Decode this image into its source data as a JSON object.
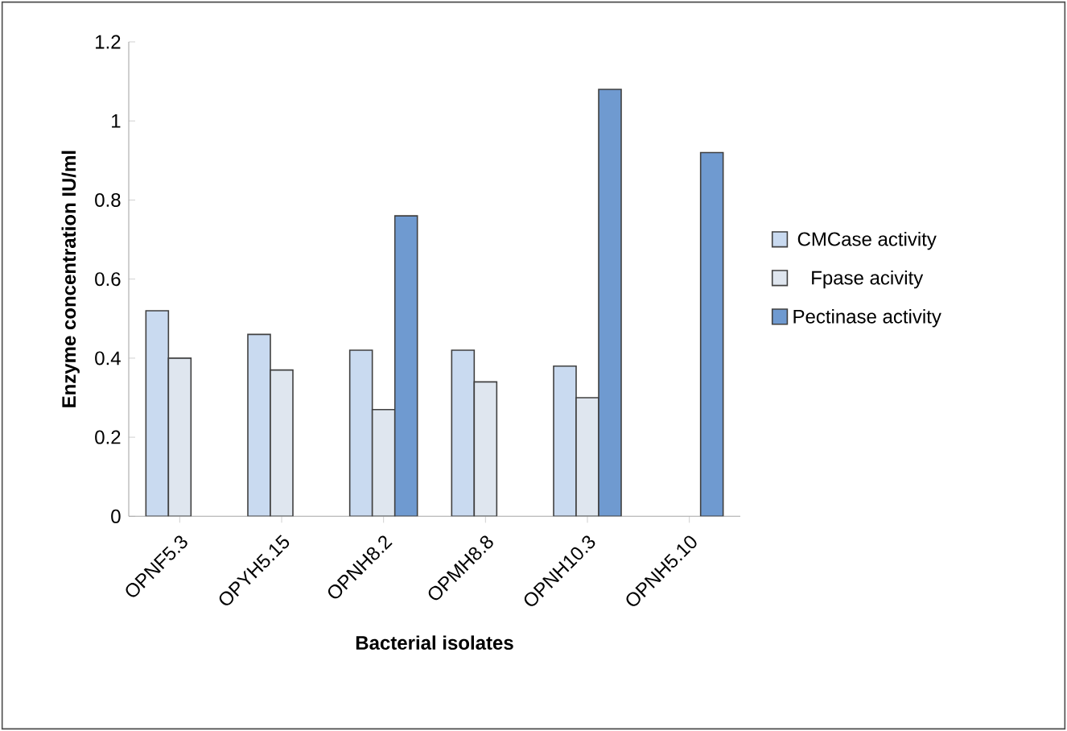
{
  "chart_data": {
    "type": "bar",
    "xlabel": "Bacterial isolates",
    "ylabel": "Enzyme concentration IU/ml",
    "categories": [
      "OPNF5.3",
      "OPYH5.15",
      "OPNH8.2",
      "OPMH8.8",
      "OPNH10.3",
      "OPNH5.10"
    ],
    "series": [
      {
        "name": "CMCase activity",
        "color": "#c9daf0",
        "values": [
          0.52,
          0.46,
          0.42,
          0.42,
          0.38,
          null
        ]
      },
      {
        "name": "Fpase acivity",
        "color": "#dfe6ef",
        "values": [
          0.4,
          0.37,
          0.27,
          0.34,
          0.3,
          null
        ]
      },
      {
        "name": "Pectinase activity",
        "color": "#6f9ad0",
        "values": [
          null,
          null,
          0.76,
          null,
          1.08,
          0.92
        ]
      }
    ],
    "ylim": [
      0,
      1.2
    ],
    "yticks": [
      0,
      0.2,
      0.4,
      0.6,
      0.8,
      1,
      1.2
    ],
    "grid": false,
    "legend": "right"
  }
}
